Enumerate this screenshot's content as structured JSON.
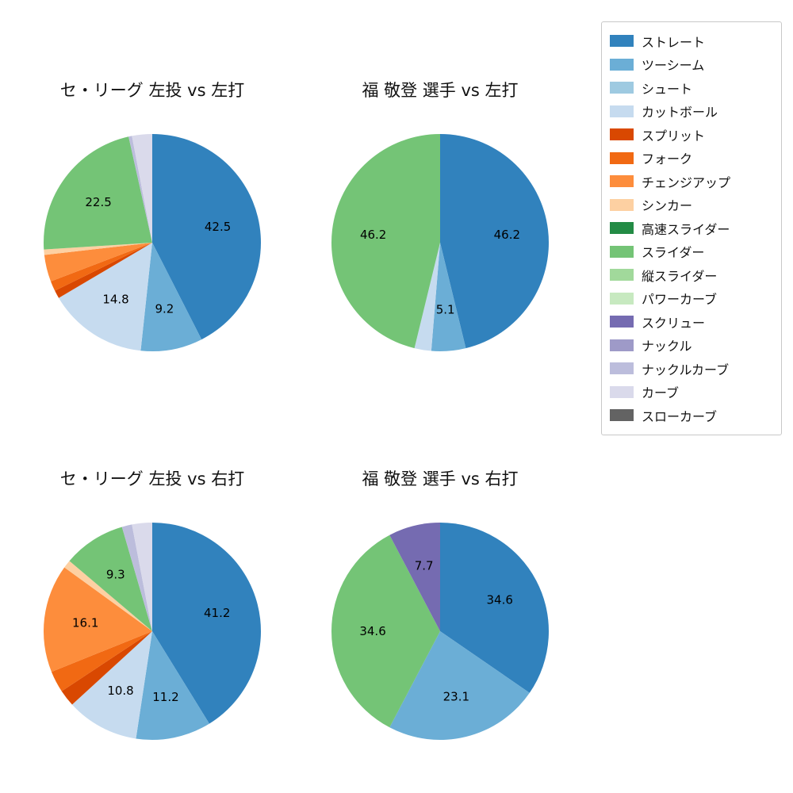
{
  "figure": {
    "background": "#ffffff",
    "rows": 2,
    "columns": 2
  },
  "legend": {
    "position": "top-right",
    "items": [
      {
        "label": "ストレート",
        "color": "#3182bd"
      },
      {
        "label": "ツーシーム",
        "color": "#6baed6"
      },
      {
        "label": "シュート",
        "color": "#9ecae1"
      },
      {
        "label": "カットボール",
        "color": "#c6dbef"
      },
      {
        "label": "スプリット",
        "color": "#d94801"
      },
      {
        "label": "フォーク",
        "color": "#f16913"
      },
      {
        "label": "チェンジアップ",
        "color": "#fd8d3c"
      },
      {
        "label": "シンカー",
        "color": "#fdd0a2"
      },
      {
        "label": "高速スライダー",
        "color": "#238b45"
      },
      {
        "label": "スライダー",
        "color": "#74c476"
      },
      {
        "label": "縦スライダー",
        "color": "#a1d99b"
      },
      {
        "label": "パワーカーブ",
        "color": "#c7e9c0"
      },
      {
        "label": "スクリュー",
        "color": "#756bb1"
      },
      {
        "label": "ナックル",
        "color": "#9e9ac8"
      },
      {
        "label": "ナックルカーブ",
        "color": "#bcbddc"
      },
      {
        "label": "カーブ",
        "color": "#dadaeb"
      },
      {
        "label": "スローカーブ",
        "color": "#636363"
      }
    ]
  },
  "chart_data": [
    {
      "type": "pie",
      "title": "セ・リーグ 左投 vs 左打",
      "unit": "percent",
      "start_angle": "top",
      "direction": "clockwise",
      "label_min_pct": 5,
      "slices": [
        {
          "label": "ストレート",
          "value": 42.5,
          "color": "#3182bd"
        },
        {
          "label": "ツーシーム",
          "value": 9.2,
          "color": "#6baed6"
        },
        {
          "label": "カットボール",
          "value": 14.8,
          "color": "#c6dbef"
        },
        {
          "label": "スプリット",
          "value": 1.2,
          "color": "#d94801"
        },
        {
          "label": "フォーク",
          "value": 1.5,
          "color": "#f16913"
        },
        {
          "label": "チェンジアップ",
          "value": 4.0,
          "color": "#fd8d3c"
        },
        {
          "label": "シンカー",
          "value": 0.8,
          "color": "#fdd0a2"
        },
        {
          "label": "スライダー",
          "value": 22.5,
          "color": "#74c476"
        },
        {
          "label": "ナックルカーブ",
          "value": 0.5,
          "color": "#bcbddc"
        },
        {
          "label": "カーブ",
          "value": 3.0,
          "color": "#dadaeb"
        }
      ]
    },
    {
      "type": "pie",
      "title": "福 敬登 選手 vs 左打",
      "unit": "percent",
      "start_angle": "top",
      "direction": "clockwise",
      "label_min_pct": 5,
      "slices": [
        {
          "label": "ストレート",
          "value": 46.2,
          "color": "#3182bd"
        },
        {
          "label": "ツーシーム",
          "value": 5.1,
          "color": "#6baed6"
        },
        {
          "label": "カットボール",
          "value": 2.5,
          "color": "#c6dbef"
        },
        {
          "label": "スライダー",
          "value": 46.2,
          "color": "#74c476"
        }
      ]
    },
    {
      "type": "pie",
      "title": "セ・リーグ 左投 vs 右打",
      "unit": "percent",
      "start_angle": "top",
      "direction": "clockwise",
      "label_min_pct": 5,
      "slices": [
        {
          "label": "ストレート",
          "value": 41.2,
          "color": "#3182bd"
        },
        {
          "label": "ツーシーム",
          "value": 11.2,
          "color": "#6baed6"
        },
        {
          "label": "カットボール",
          "value": 10.8,
          "color": "#c6dbef"
        },
        {
          "label": "スプリット",
          "value": 2.5,
          "color": "#d94801"
        },
        {
          "label": "フォーク",
          "value": 3.2,
          "color": "#f16913"
        },
        {
          "label": "チェンジアップ",
          "value": 16.1,
          "color": "#fd8d3c"
        },
        {
          "label": "シンカー",
          "value": 1.2,
          "color": "#fdd0a2"
        },
        {
          "label": "スライダー",
          "value": 9.3,
          "color": "#74c476"
        },
        {
          "label": "ナックルカーブ",
          "value": 1.5,
          "color": "#bcbddc"
        },
        {
          "label": "カーブ",
          "value": 3.0,
          "color": "#dadaeb"
        }
      ]
    },
    {
      "type": "pie",
      "title": "福 敬登 選手 vs 右打",
      "unit": "percent",
      "start_angle": "top",
      "direction": "clockwise",
      "label_min_pct": 5,
      "slices": [
        {
          "label": "ストレート",
          "value": 34.6,
          "color": "#3182bd"
        },
        {
          "label": "ツーシーム",
          "value": 23.1,
          "color": "#6baed6"
        },
        {
          "label": "スライダー",
          "value": 34.6,
          "color": "#74c476"
        },
        {
          "label": "スクリュー",
          "value": 7.7,
          "color": "#756bb1"
        }
      ]
    }
  ]
}
